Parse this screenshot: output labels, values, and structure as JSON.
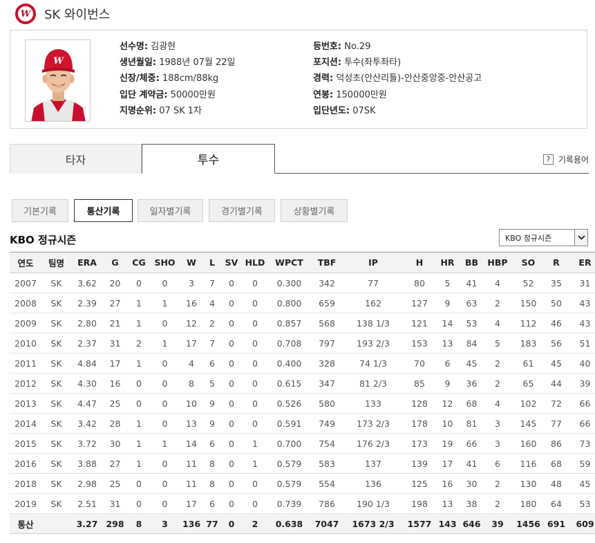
{
  "team": {
    "name": "SK 와이번스",
    "logo_letter": "W"
  },
  "profile": {
    "left": [
      {
        "label": "선수명:",
        "value": "김광현"
      },
      {
        "label": "생년월일:",
        "value": "1988년 07월 22일"
      },
      {
        "label": "신장/체중:",
        "value": "188cm/88kg"
      },
      {
        "label": "입단 계약금:",
        "value": "50000만원"
      },
      {
        "label": "지명순위:",
        "value": "07 SK 1차"
      }
    ],
    "right": [
      {
        "label": "등번호:",
        "value": "No.29"
      },
      {
        "label": "포지션:",
        "value": "투수(좌투좌타)"
      },
      {
        "label": "경력:",
        "value": "덕성초(안산리틀)-안산중앙중-안산공고"
      },
      {
        "label": "연봉:",
        "value": "150000만원"
      },
      {
        "label": "입단년도:",
        "value": "07SK"
      }
    ]
  },
  "main_tabs": {
    "batter": "타자",
    "pitcher": "투수",
    "active": "pitcher"
  },
  "glossary": {
    "icon": "?",
    "label": "기록용어"
  },
  "sub_tabs": [
    "기본기록",
    "통산기록",
    "일자별기록",
    "경기별기록",
    "상황별기록"
  ],
  "sub_tab_active": 1,
  "season": {
    "title": "KBO 정규시즌",
    "select_value": "KBO 정규시즌"
  },
  "stats": {
    "headers": [
      "연도",
      "팀명",
      "ERA",
      "G",
      "CG",
      "SHO",
      "W",
      "L",
      "SV",
      "HLD",
      "WPCT",
      "TBF",
      "IP",
      "H",
      "HR",
      "BB",
      "HBP",
      "SO",
      "R",
      "ER"
    ],
    "rows": [
      [
        "2007",
        "SK",
        "3.62",
        "20",
        "0",
        "0",
        "3",
        "7",
        "0",
        "0",
        "0.300",
        "342",
        "77",
        "80",
        "5",
        "41",
        "4",
        "52",
        "35",
        "31"
      ],
      [
        "2008",
        "SK",
        "2.39",
        "27",
        "1",
        "1",
        "16",
        "4",
        "0",
        "0",
        "0.800",
        "659",
        "162",
        "127",
        "9",
        "63",
        "2",
        "150",
        "50",
        "43"
      ],
      [
        "2009",
        "SK",
        "2.80",
        "21",
        "1",
        "0",
        "12",
        "2",
        "0",
        "0",
        "0.857",
        "568",
        "138 1/3",
        "121",
        "14",
        "53",
        "4",
        "112",
        "46",
        "43"
      ],
      [
        "2010",
        "SK",
        "2.37",
        "31",
        "2",
        "1",
        "17",
        "7",
        "0",
        "0",
        "0.708",
        "797",
        "193 2/3",
        "153",
        "13",
        "84",
        "5",
        "183",
        "56",
        "51"
      ],
      [
        "2011",
        "SK",
        "4.84",
        "17",
        "1",
        "0",
        "4",
        "6",
        "0",
        "0",
        "0.400",
        "328",
        "74 1/3",
        "70",
        "6",
        "45",
        "2",
        "61",
        "45",
        "40"
      ],
      [
        "2012",
        "SK",
        "4.30",
        "16",
        "0",
        "0",
        "8",
        "5",
        "0",
        "0",
        "0.615",
        "347",
        "81 2/3",
        "85",
        "9",
        "36",
        "2",
        "65",
        "44",
        "39"
      ],
      [
        "2013",
        "SK",
        "4.47",
        "25",
        "0",
        "0",
        "10",
        "9",
        "0",
        "0",
        "0.526",
        "580",
        "133",
        "128",
        "12",
        "68",
        "4",
        "102",
        "72",
        "66"
      ],
      [
        "2014",
        "SK",
        "3.42",
        "28",
        "1",
        "0",
        "13",
        "9",
        "0",
        "0",
        "0.591",
        "749",
        "173 2/3",
        "178",
        "10",
        "81",
        "3",
        "145",
        "77",
        "66"
      ],
      [
        "2015",
        "SK",
        "3.72",
        "30",
        "1",
        "1",
        "14",
        "6",
        "0",
        "1",
        "0.700",
        "754",
        "176 2/3",
        "173",
        "19",
        "66",
        "3",
        "160",
        "86",
        "73"
      ],
      [
        "2016",
        "SK",
        "3.88",
        "27",
        "1",
        "0",
        "11",
        "8",
        "0",
        "1",
        "0.579",
        "583",
        "137",
        "139",
        "17",
        "41",
        "6",
        "116",
        "68",
        "59"
      ],
      [
        "2018",
        "SK",
        "2.98",
        "25",
        "0",
        "0",
        "11",
        "8",
        "0",
        "0",
        "0.579",
        "554",
        "136",
        "125",
        "16",
        "30",
        "2",
        "130",
        "48",
        "45"
      ],
      [
        "2019",
        "SK",
        "2.51",
        "31",
        "0",
        "0",
        "17",
        "6",
        "0",
        "0",
        "0.739",
        "786",
        "190 1/3",
        "198",
        "13",
        "38",
        "2",
        "180",
        "64",
        "53"
      ]
    ],
    "total": [
      "통산",
      "",
      "3.27",
      "298",
      "8",
      "3",
      "136",
      "77",
      "0",
      "2",
      "0.638",
      "7047",
      "1673 2/3",
      "1577",
      "143",
      "646",
      "39",
      "1456",
      "691",
      "609"
    ]
  },
  "colors": {
    "brand": "#c8102e",
    "header_bg": "#f3f3f3",
    "active_border": "#333333"
  }
}
